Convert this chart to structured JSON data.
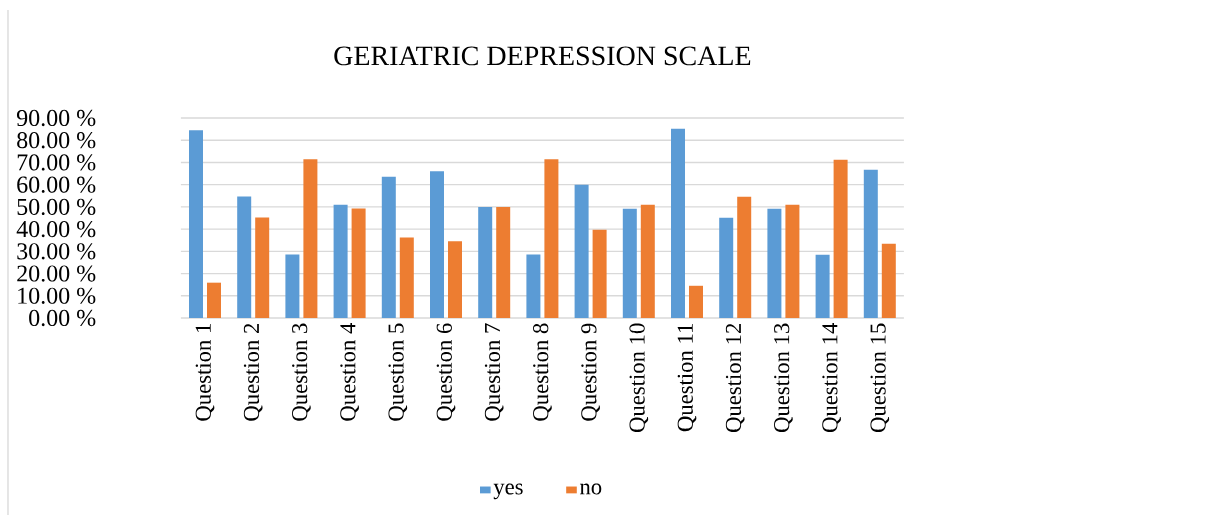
{
  "chart_data": {
    "type": "bar",
    "title": "GERIATRIC DEPRESSION SCALE",
    "categories": [
      "Question 1",
      "Question 2",
      "Question 3",
      "Question 4",
      "Question 5",
      "Question 6",
      "Question 7",
      "Question 8",
      "Question 9",
      "Question 10",
      "Question 11",
      "Question 12",
      "Question 13",
      "Question 14",
      "Question 15"
    ],
    "series": [
      {
        "name": "yes",
        "color": "#5b9bd5",
        "values": [
          84.5,
          54.7,
          28.6,
          51.0,
          63.6,
          66.0,
          50.0,
          28.6,
          60.0,
          49.2,
          85.2,
          45.1,
          49.2,
          28.5,
          66.7
        ]
      },
      {
        "name": "no",
        "color": "#ed7d31",
        "values": [
          15.9,
          45.2,
          71.4,
          49.3,
          36.2,
          34.5,
          50.0,
          71.4,
          39.7,
          51.0,
          14.5,
          54.6,
          51.0,
          71.2,
          33.4
        ]
      }
    ],
    "ylim": [
      0,
      90
    ],
    "yticks": [
      {
        "value": 0,
        "label": "0.00 %"
      },
      {
        "value": 10,
        "label": "10.00 %"
      },
      {
        "value": 20,
        "label": "20.00 %"
      },
      {
        "value": 30,
        "label": "30.00 %"
      },
      {
        "value": 40,
        "label": "40.00 %"
      },
      {
        "value": 50,
        "label": "50.00 %"
      },
      {
        "value": 60,
        "label": "60.00 %"
      },
      {
        "value": 70,
        "label": "70.00 %"
      },
      {
        "value": 80,
        "label": "80.00 %"
      },
      {
        "value": 90,
        "label": "90.00 %"
      }
    ],
    "grid": "y",
    "legend": "bottom"
  }
}
